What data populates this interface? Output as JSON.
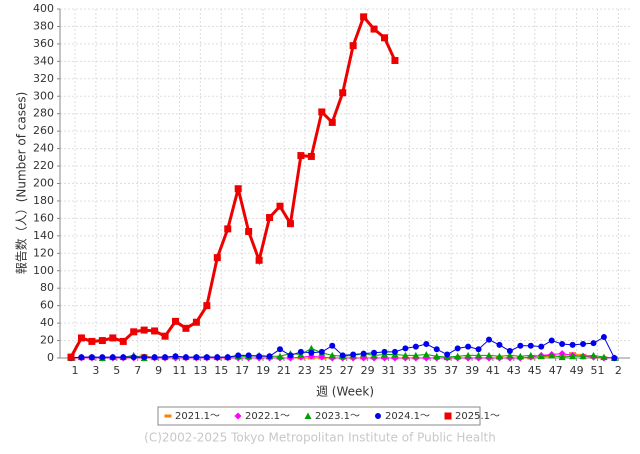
{
  "chart_data": {
    "type": "line",
    "ylabel": "報告数（人）(Number of cases)",
    "xlabel": "週 (Week)",
    "footer": "(C)2002-2025 Tokyo Metropolitan Institute of Public Health",
    "categories": [
      "1",
      null,
      "3",
      null,
      "5",
      null,
      "7",
      null,
      "9",
      null,
      "11",
      null,
      "13",
      null,
      "15",
      null,
      "17",
      null,
      "19",
      null,
      "21",
      null,
      "23",
      null,
      "25",
      null,
      "27",
      null,
      "29",
      null,
      "31",
      null,
      "33",
      null,
      "35",
      null,
      "37",
      null,
      "39",
      null,
      "41",
      null,
      "43",
      null,
      "45",
      null,
      "47",
      null,
      "49",
      null,
      "51",
      null,
      "2"
    ],
    "ylim": [
      0,
      400
    ],
    "yticks": [
      0,
      20,
      40,
      60,
      80,
      100,
      120,
      140,
      160,
      180,
      200,
      220,
      240,
      260,
      280,
      300,
      320,
      340,
      360,
      380,
      400
    ],
    "grid": true,
    "legend": "bottom",
    "series": [
      {
        "name": "2021.1～",
        "color": "#ff8000",
        "marker": "dash",
        "values": [
          0,
          0,
          1,
          0,
          0,
          0,
          1,
          3,
          0,
          0,
          0,
          0,
          1,
          1,
          0,
          0,
          0,
          0,
          0,
          0,
          0,
          0,
          0,
          0,
          0,
          0,
          0,
          0,
          0,
          0,
          0,
          0,
          0,
          0,
          0,
          0,
          0,
          0,
          0,
          0,
          0,
          0,
          0,
          0,
          0,
          1,
          2,
          2,
          5,
          3,
          1,
          0,
          0
        ]
      },
      {
        "name": "2022.1～",
        "color": "#ff00ff",
        "marker": "diamond",
        "values": [
          0,
          0,
          0,
          0,
          0,
          0,
          0,
          0,
          0,
          0,
          0,
          0,
          0,
          0,
          0,
          0,
          0,
          0,
          0,
          0,
          0,
          0,
          1,
          2,
          1,
          0,
          0,
          0,
          0,
          0,
          0,
          0,
          0,
          0,
          0,
          0,
          0,
          0,
          0,
          0,
          0,
          0,
          0,
          0,
          1,
          3,
          4,
          5,
          3,
          2,
          1,
          0,
          0
        ]
      },
      {
        "name": "2023.1～",
        "color": "#00a000",
        "marker": "triangle",
        "values": [
          0,
          1,
          1,
          0,
          1,
          1,
          3,
          0,
          1,
          1,
          2,
          1,
          1,
          1,
          1,
          1,
          2,
          2,
          3,
          2,
          2,
          5,
          4,
          11,
          6,
          3,
          2,
          3,
          5,
          3,
          4,
          4,
          3,
          3,
          4,
          2,
          1,
          2,
          3,
          3,
          3,
          2,
          3,
          2,
          3,
          2,
          3,
          1,
          2,
          2,
          3,
          1,
          0
        ]
      },
      {
        "name": "2024.1～",
        "color": "#0000ee",
        "marker": "circle",
        "values": [
          0,
          1,
          1,
          1,
          1,
          1,
          1,
          1,
          1,
          1,
          2,
          1,
          1,
          1,
          1,
          1,
          3,
          3,
          2,
          2,
          10,
          3,
          7,
          6,
          7,
          14,
          3,
          4,
          5,
          6,
          7,
          7,
          11,
          13,
          16,
          10,
          4,
          11,
          13,
          10,
          21,
          15,
          8,
          14,
          14,
          13,
          20,
          16,
          15,
          16,
          17,
          24,
          0
        ]
      },
      {
        "name": "2025.1～",
        "color": "#ee0000",
        "marker": "square",
        "width": 3,
        "values": [
          1,
          23,
          19,
          20,
          23,
          19,
          30,
          32,
          31,
          25,
          42,
          34,
          41,
          60,
          115,
          148,
          194,
          145,
          112,
          161,
          174,
          154,
          232,
          231,
          282,
          270,
          304,
          358,
          391,
          377,
          367,
          341,
          null,
          null,
          null,
          null,
          null,
          null,
          null,
          null,
          null,
          null,
          null,
          null,
          null,
          null,
          null,
          null,
          null,
          null,
          null,
          null,
          null
        ]
      }
    ]
  }
}
